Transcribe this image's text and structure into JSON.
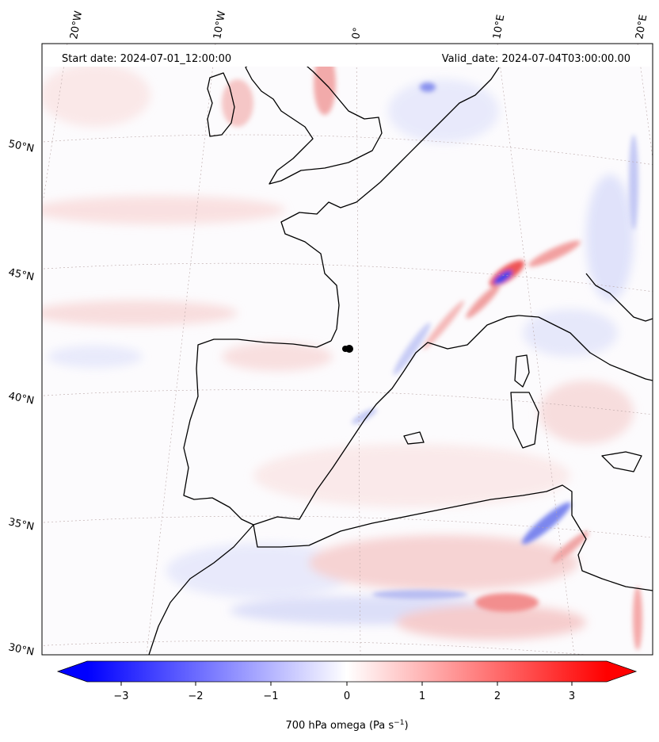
{
  "header": {
    "start_date": "Start date: 2024-07-01_12:00:00",
    "valid_date": "Valid_date: 2024-07-04T03:00:00.00"
  },
  "map": {
    "longitude_labels": [
      "20°W",
      "10°W",
      "0°",
      "10°E",
      "20°E"
    ],
    "latitude_labels": [
      "50°N",
      "45°N",
      "40°N",
      "35°N",
      "30°N"
    ],
    "field": "700 hPa omega"
  },
  "colorbar": {
    "ticks": [
      "−3",
      "−2",
      "−1",
      "0",
      "1",
      "2",
      "3"
    ],
    "label_main": "700 hPa omega (Pa s",
    "label_sup": "−1",
    "label_end": ")",
    "low_color": "#0000ff",
    "mid_color": "#ffffff",
    "high_color": "#ff0000"
  }
}
